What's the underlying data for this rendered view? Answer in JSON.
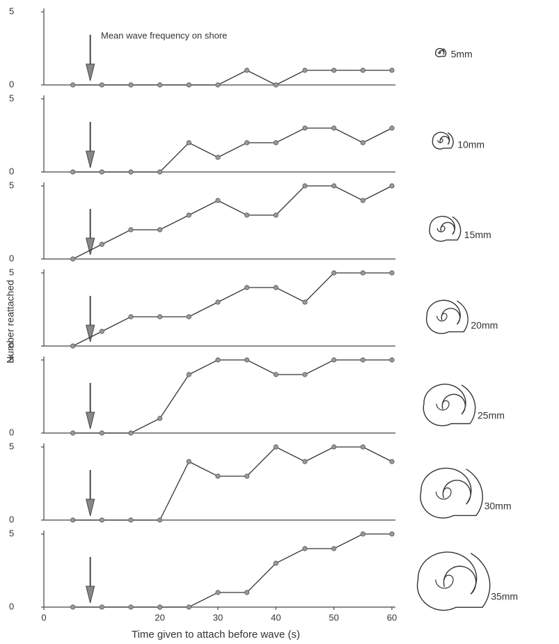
{
  "figure": {
    "ylabel": "Number reattached",
    "xlabel": "Time given to attach before wave (s)",
    "annotation": "Mean wave frequency on shore",
    "annotation_x": 8
  },
  "chart_data": [
    {
      "type": "line",
      "title": "5mm",
      "x": [
        5,
        10,
        15,
        20,
        25,
        30,
        35,
        40,
        45,
        50,
        55,
        60
      ],
      "values": [
        0,
        0,
        0,
        0,
        0,
        0,
        1,
        0,
        1,
        1,
        1,
        1
      ],
      "xlim": [
        0,
        60
      ],
      "ylim": [
        0,
        5
      ],
      "yticks": [
        0,
        5
      ],
      "color": "#333333",
      "marker_color": "#999999"
    },
    {
      "type": "line",
      "title": "10mm",
      "x": [
        5,
        10,
        15,
        20,
        25,
        30,
        35,
        40,
        45,
        50,
        55,
        60
      ],
      "values": [
        0,
        0,
        0,
        0,
        2,
        1,
        2,
        2,
        3,
        3,
        2,
        3
      ],
      "xlim": [
        0,
        60
      ],
      "ylim": [
        0,
        5
      ],
      "yticks": [
        0,
        5
      ],
      "color": "#333333",
      "marker_color": "#999999"
    },
    {
      "type": "line",
      "title": "15mm",
      "x": [
        5,
        10,
        15,
        20,
        25,
        30,
        35,
        40,
        45,
        50,
        55,
        60
      ],
      "values": [
        0,
        1,
        2,
        2,
        3,
        4,
        3,
        3,
        5,
        5,
        4,
        5
      ],
      "xlim": [
        0,
        60
      ],
      "ylim": [
        0,
        5
      ],
      "yticks": [
        0,
        5
      ],
      "color": "#333333",
      "marker_color": "#999999"
    },
    {
      "type": "line",
      "title": "20mm",
      "x": [
        5,
        10,
        15,
        20,
        25,
        30,
        35,
        40,
        45,
        50,
        55,
        60
      ],
      "values": [
        0,
        1,
        2,
        2,
        2,
        3,
        4,
        4,
        3,
        5,
        5,
        5
      ],
      "xlim": [
        0,
        60
      ],
      "ylim": [
        0,
        5
      ],
      "yticks": [
        0,
        5
      ],
      "color": "#333333",
      "marker_color": "#999999"
    },
    {
      "type": "line",
      "title": "25mm",
      "x": [
        5,
        10,
        15,
        20,
        25,
        30,
        35,
        40,
        45,
        50,
        55,
        60
      ],
      "values": [
        0,
        0,
        0,
        1,
        4,
        5,
        5,
        4,
        4,
        5,
        5,
        5
      ],
      "xlim": [
        0,
        60
      ],
      "ylim": [
        0,
        5
      ],
      "yticks": [
        0,
        5
      ],
      "color": "#333333",
      "marker_color": "#999999"
    },
    {
      "type": "line",
      "title": "30mm",
      "x": [
        5,
        10,
        15,
        20,
        25,
        30,
        35,
        40,
        45,
        50,
        55,
        60
      ],
      "values": [
        0,
        0,
        0,
        0,
        4,
        3,
        3,
        5,
        4,
        5,
        5,
        4
      ],
      "xlim": [
        0,
        60
      ],
      "ylim": [
        0,
        5
      ],
      "yticks": [
        0,
        5
      ],
      "color": "#333333",
      "marker_color": "#999999"
    },
    {
      "type": "line",
      "title": "35mm",
      "x": [
        5,
        10,
        15,
        20,
        25,
        30,
        35,
        40,
        45,
        50,
        55,
        60
      ],
      "values": [
        0,
        0,
        0,
        0,
        0,
        1,
        1,
        3,
        4,
        4,
        5,
        5
      ],
      "xlim": [
        0,
        60
      ],
      "ylim": [
        0,
        5
      ],
      "yticks": [
        0,
        5
      ],
      "xticks": [
        0,
        20,
        30,
        40,
        50,
        60
      ],
      "color": "#333333",
      "marker_color": "#999999"
    }
  ]
}
